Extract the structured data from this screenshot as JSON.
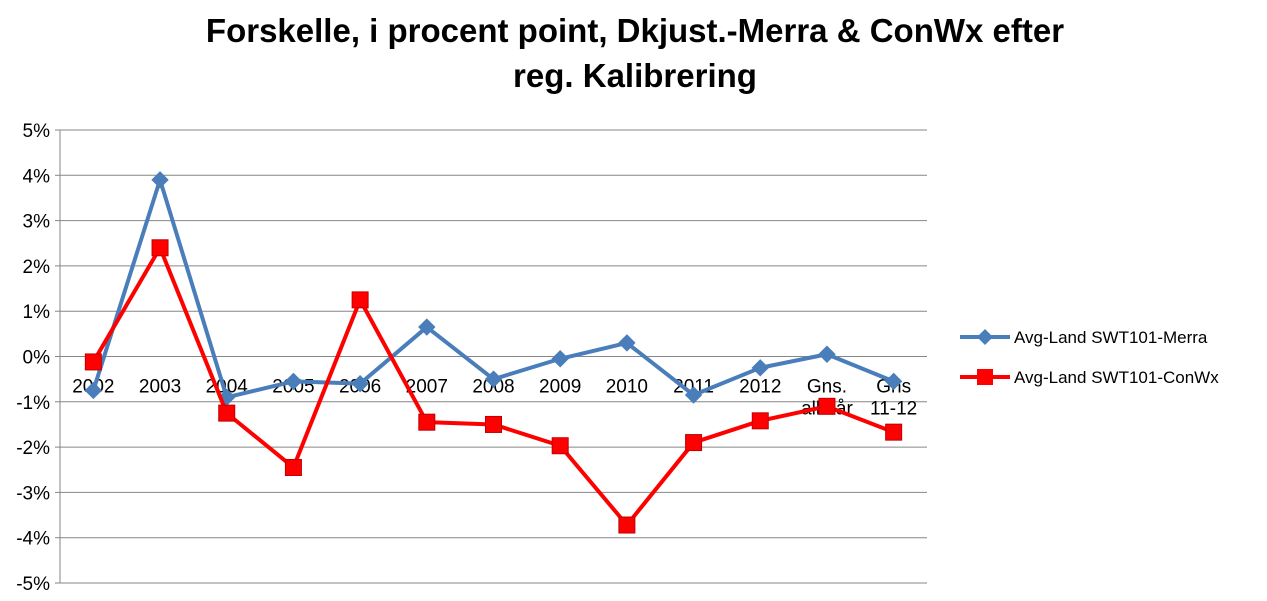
{
  "chart_data": {
    "type": "line",
    "title_line1": "Forskelle, i procent point, Dkjust.-Merra & ConWx efter",
    "title_line2": "reg. Kalibrering",
    "categories": [
      "2002",
      "2003",
      "2004",
      "2005",
      "2006",
      "2007",
      "2008",
      "2009",
      "2010",
      "2011",
      "2012",
      [
        "Gns.",
        "alle år"
      ],
      [
        "Gns",
        "11-12"
      ]
    ],
    "y_ticks": [
      "5%",
      "4%",
      "3%",
      "2%",
      "1%",
      "0%",
      "-1%",
      "-2%",
      "-3%",
      "-4%",
      "-5%"
    ],
    "ylim": [
      -5,
      5
    ],
    "y_unit": "%",
    "grid": true,
    "legend_position": "right",
    "series": [
      {
        "name": "Avg-Land SWT101-Merra",
        "color": "#4a7ebb",
        "marker": "diamond",
        "values": [
          -0.75,
          3.9,
          -0.9,
          -0.55,
          -0.6,
          0.65,
          -0.5,
          -0.05,
          0.3,
          -0.85,
          -0.25,
          0.05,
          -0.55
        ]
      },
      {
        "name": "Avg-Land SWT101-ConWx",
        "color": "#ff0000",
        "marker": "square",
        "values": [
          -0.12,
          2.4,
          -1.25,
          -2.45,
          1.25,
          -1.45,
          -1.5,
          -1.97,
          -3.72,
          -1.9,
          -1.42,
          -1.1,
          -1.67
        ]
      }
    ]
  }
}
